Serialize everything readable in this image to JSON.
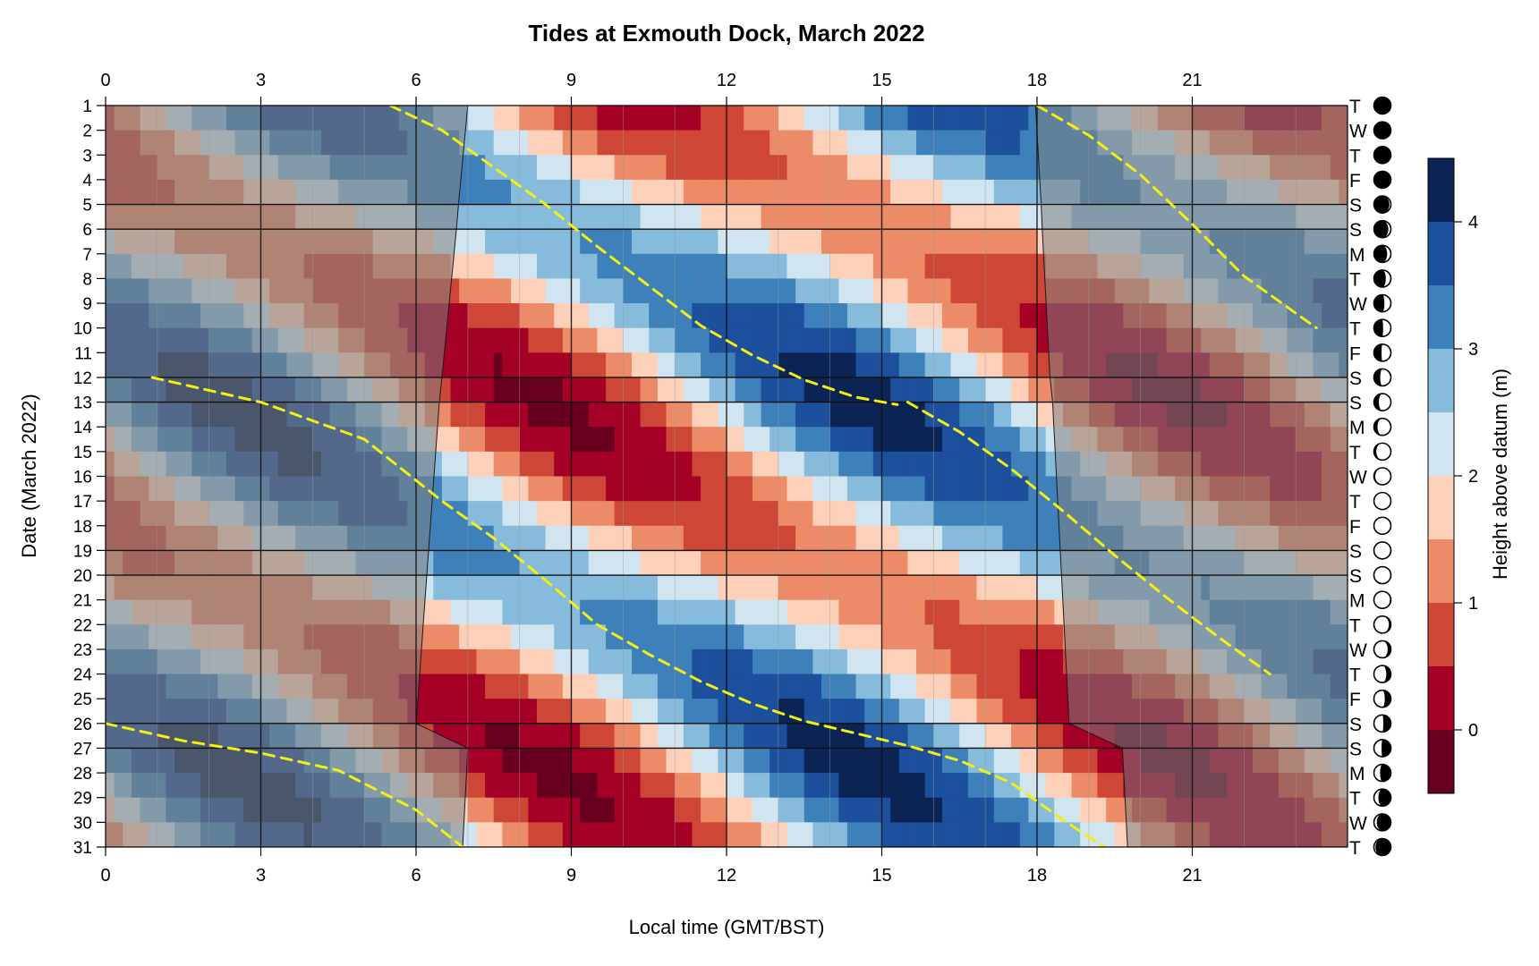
{
  "chart_data": {
    "type": "heatmap",
    "title": "Tides at Exmouth Dock, March 2022",
    "xlabel": "Local time (GMT/BST)",
    "ylabel": "Date (March 2022)",
    "colorbar_label": "Height above datum (m)",
    "xlim": [
      0,
      24
    ],
    "ylim": [
      1,
      31
    ],
    "x_ticks": [
      0,
      3,
      6,
      9,
      12,
      15,
      18,
      21
    ],
    "y_ticks": [
      1,
      2,
      3,
      4,
      5,
      6,
      7,
      8,
      9,
      10,
      11,
      12,
      13,
      14,
      15,
      16,
      17,
      18,
      19,
      20,
      21,
      22,
      23,
      24,
      25,
      26,
      27,
      28,
      29,
      30,
      31
    ],
    "weekday_letters": [
      "T",
      "W",
      "T",
      "F",
      "S",
      "S",
      "M",
      "T",
      "W",
      "T",
      "F",
      "S",
      "S",
      "M",
      "T",
      "W",
      "T",
      "F",
      "S",
      "S",
      "M",
      "T",
      "W",
      "T",
      "F",
      "S",
      "S",
      "M",
      "T",
      "W",
      "T"
    ],
    "moon_illumination": [
      0.02,
      0.0,
      0.01,
      0.04,
      0.09,
      0.15,
      0.22,
      0.3,
      0.38,
      0.46,
      0.55,
      0.63,
      0.71,
      0.79,
      0.86,
      0.92,
      0.97,
      0.99,
      1.0,
      0.98,
      0.94,
      0.88,
      0.81,
      0.73,
      0.64,
      0.55,
      0.45,
      0.36,
      0.26,
      0.17,
      0.09
    ],
    "moon_waxing": [
      true,
      true,
      true,
      true,
      true,
      true,
      true,
      true,
      true,
      true,
      true,
      true,
      true,
      true,
      true,
      true,
      true,
      true,
      true,
      false,
      false,
      false,
      false,
      false,
      false,
      false,
      false,
      false,
      false,
      false,
      false
    ],
    "colorbar_ticks": [
      0,
      1,
      2,
      3,
      4
    ],
    "level_breaks": [
      -0.5,
      0,
      0.5,
      1,
      1.5,
      2,
      2.5,
      3,
      3.5,
      4,
      4.5
    ],
    "level_colors": [
      "#67001f",
      "#a50026",
      "#ce4636",
      "#ec8b68",
      "#fdd0b9",
      "#d1e5f0",
      "#86bbdc",
      "#3d80ba",
      "#1c4f9c",
      "#0b2453"
    ],
    "daylight": {
      "days": [
        1,
        5,
        6,
        12,
        13,
        26,
        27,
        31
      ],
      "sunrise": [
        7.0,
        6.82,
        6.78,
        6.5,
        6.45,
        6.0,
        7.0,
        6.9
      ],
      "sunset": [
        17.97,
        18.08,
        18.1,
        18.25,
        18.3,
        18.62,
        19.65,
        19.75
      ]
    },
    "high_tide_tracks": [
      {
        "x": [
          5.5,
          6.5,
          7.5,
          8.5,
          9.5,
          10.5,
          11.5,
          12.5,
          13.5,
          14.5,
          15.3
        ],
        "y": [
          1,
          2,
          3.5,
          5,
          6.7,
          8.3,
          9.9,
          11.1,
          12.1,
          12.8,
          13.1
        ]
      },
      {
        "x": [
          18,
          19,
          20,
          21,
          22,
          23.4
        ],
        "y": [
          1,
          2.2,
          3.8,
          5.8,
          7.9,
          10
        ]
      },
      {
        "x": [
          0.9,
          3,
          5,
          6.5,
          7.5,
          8.5,
          9.5,
          10.5,
          11.5,
          12.5,
          13.5,
          14.5,
          15.5,
          16.5,
          17.5,
          18.5,
          19.3
        ],
        "y": [
          12,
          13,
          14.5,
          17,
          18.5,
          20.2,
          22,
          23.2,
          24.3,
          25.2,
          25.9,
          26.4,
          26.9,
          27.5,
          28.4,
          29.9,
          31
        ]
      },
      {
        "x": [
          15.5,
          16.5,
          17.5,
          18.5,
          19.5,
          20.5,
          21.5,
          22.5
        ],
        "y": [
          13,
          14.2,
          15.7,
          17.4,
          19.2,
          20.9,
          22.5,
          24
        ]
      },
      {
        "x": [
          0,
          1.5,
          3,
          4.5,
          6,
          6.9
        ],
        "y": [
          26,
          26.7,
          27.2,
          27.9,
          29.5,
          31
        ]
      }
    ]
  }
}
